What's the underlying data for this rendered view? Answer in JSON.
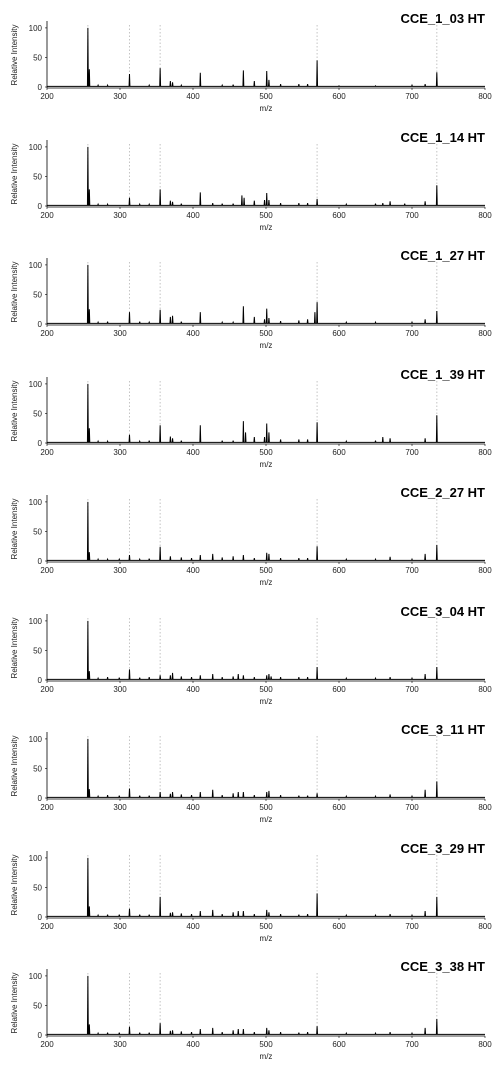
{
  "chart_data": {
    "type": "line",
    "xlabel": "m/z",
    "ylabel": "Relative Intensity",
    "xlim": [
      200,
      800
    ],
    "ylim": [
      0,
      110
    ],
    "x_ticks": [
      200,
      300,
      400,
      500,
      600,
      700,
      800
    ],
    "y_ticks": [
      0,
      50,
      100
    ],
    "reference_lines": [
      256,
      313,
      355,
      570,
      734
    ],
    "panels": [
      {
        "title": "CCE_1_03 HT",
        "peaks": [
          [
            256,
            100
          ],
          [
            258,
            30
          ],
          [
            270,
            3
          ],
          [
            283,
            3
          ],
          [
            313,
            22
          ],
          [
            340,
            3
          ],
          [
            355,
            32
          ],
          [
            369,
            10
          ],
          [
            372,
            8
          ],
          [
            384,
            3
          ],
          [
            410,
            24
          ],
          [
            440,
            3
          ],
          [
            455,
            4
          ],
          [
            469,
            28
          ],
          [
            484,
            10
          ],
          [
            501,
            27
          ],
          [
            504,
            12
          ],
          [
            520,
            5
          ],
          [
            545,
            5
          ],
          [
            557,
            5
          ],
          [
            570,
            45
          ],
          [
            600,
            2
          ],
          [
            650,
            2
          ],
          [
            700,
            3
          ],
          [
            718,
            5
          ],
          [
            734,
            25
          ]
        ]
      },
      {
        "title": "CCE_1_14 HT",
        "peaks": [
          [
            256,
            100
          ],
          [
            258,
            28
          ],
          [
            270,
            3
          ],
          [
            283,
            3
          ],
          [
            313,
            14
          ],
          [
            327,
            3
          ],
          [
            340,
            3
          ],
          [
            355,
            28
          ],
          [
            369,
            9
          ],
          [
            372,
            7
          ],
          [
            384,
            4
          ],
          [
            410,
            23
          ],
          [
            427,
            5
          ],
          [
            440,
            4
          ],
          [
            455,
            4
          ],
          [
            467,
            18
          ],
          [
            470,
            14
          ],
          [
            484,
            9
          ],
          [
            498,
            10
          ],
          [
            501,
            22
          ],
          [
            504,
            10
          ],
          [
            520,
            5
          ],
          [
            545,
            5
          ],
          [
            557,
            5
          ],
          [
            570,
            12
          ],
          [
            610,
            3
          ],
          [
            650,
            4
          ],
          [
            660,
            5
          ],
          [
            670,
            8
          ],
          [
            690,
            4
          ],
          [
            718,
            8
          ],
          [
            734,
            35
          ]
        ]
      },
      {
        "title": "CCE_1_27 HT",
        "peaks": [
          [
            256,
            100
          ],
          [
            258,
            25
          ],
          [
            270,
            3
          ],
          [
            283,
            4
          ],
          [
            313,
            20
          ],
          [
            327,
            4
          ],
          [
            340,
            3
          ],
          [
            355,
            24
          ],
          [
            369,
            12
          ],
          [
            372,
            14
          ],
          [
            384,
            4
          ],
          [
            410,
            20
          ],
          [
            440,
            3
          ],
          [
            455,
            3
          ],
          [
            469,
            30
          ],
          [
            484,
            12
          ],
          [
            498,
            8
          ],
          [
            501,
            26
          ],
          [
            504,
            10
          ],
          [
            520,
            5
          ],
          [
            545,
            6
          ],
          [
            557,
            8
          ],
          [
            567,
            20
          ],
          [
            570,
            37
          ],
          [
            610,
            3
          ],
          [
            650,
            3
          ],
          [
            700,
            3
          ],
          [
            718,
            8
          ],
          [
            734,
            22
          ]
        ]
      },
      {
        "title": "CCE_1_39 HT",
        "peaks": [
          [
            256,
            100
          ],
          [
            258,
            25
          ],
          [
            270,
            3
          ],
          [
            283,
            3
          ],
          [
            313,
            14
          ],
          [
            327,
            3
          ],
          [
            340,
            4
          ],
          [
            355,
            30
          ],
          [
            369,
            11
          ],
          [
            372,
            8
          ],
          [
            384,
            4
          ],
          [
            410,
            30
          ],
          [
            440,
            4
          ],
          [
            455,
            4
          ],
          [
            469,
            37
          ],
          [
            472,
            18
          ],
          [
            484,
            10
          ],
          [
            498,
            10
          ],
          [
            501,
            33
          ],
          [
            504,
            18
          ],
          [
            520,
            6
          ],
          [
            545,
            6
          ],
          [
            557,
            6
          ],
          [
            570,
            35
          ],
          [
            610,
            3
          ],
          [
            650,
            4
          ],
          [
            660,
            10
          ],
          [
            670,
            8
          ],
          [
            718,
            8
          ],
          [
            734,
            47
          ]
        ]
      },
      {
        "title": "CCE_2_27 HT",
        "peaks": [
          [
            256,
            100
          ],
          [
            258,
            15
          ],
          [
            270,
            3
          ],
          [
            283,
            3
          ],
          [
            299,
            3
          ],
          [
            313,
            10
          ],
          [
            327,
            3
          ],
          [
            340,
            4
          ],
          [
            355,
            24
          ],
          [
            369,
            8
          ],
          [
            384,
            6
          ],
          [
            398,
            5
          ],
          [
            410,
            10
          ],
          [
            427,
            12
          ],
          [
            440,
            6
          ],
          [
            455,
            8
          ],
          [
            469,
            10
          ],
          [
            484,
            5
          ],
          [
            501,
            14
          ],
          [
            504,
            12
          ],
          [
            520,
            5
          ],
          [
            545,
            5
          ],
          [
            557,
            5
          ],
          [
            570,
            25
          ],
          [
            610,
            3
          ],
          [
            650,
            3
          ],
          [
            670,
            7
          ],
          [
            700,
            3
          ],
          [
            718,
            12
          ],
          [
            734,
            27
          ]
        ]
      },
      {
        "title": "CCE_3_04 HT",
        "peaks": [
          [
            256,
            100
          ],
          [
            258,
            15
          ],
          [
            270,
            3
          ],
          [
            283,
            5
          ],
          [
            299,
            4
          ],
          [
            313,
            18
          ],
          [
            327,
            4
          ],
          [
            340,
            5
          ],
          [
            355,
            8
          ],
          [
            369,
            8
          ],
          [
            372,
            12
          ],
          [
            384,
            6
          ],
          [
            398,
            5
          ],
          [
            410,
            8
          ],
          [
            427,
            10
          ],
          [
            440,
            5
          ],
          [
            455,
            6
          ],
          [
            462,
            10
          ],
          [
            469,
            8
          ],
          [
            484,
            5
          ],
          [
            501,
            8
          ],
          [
            504,
            10
          ],
          [
            507,
            6
          ],
          [
            520,
            5
          ],
          [
            545,
            5
          ],
          [
            557,
            5
          ],
          [
            570,
            22
          ],
          [
            610,
            3
          ],
          [
            650,
            3
          ],
          [
            670,
            5
          ],
          [
            700,
            3
          ],
          [
            718,
            10
          ],
          [
            734,
            22
          ]
        ]
      },
      {
        "title": "CCE_3_11 HT",
        "peaks": [
          [
            256,
            100
          ],
          [
            258,
            15
          ],
          [
            270,
            3
          ],
          [
            283,
            5
          ],
          [
            299,
            4
          ],
          [
            313,
            16
          ],
          [
            327,
            4
          ],
          [
            340,
            4
          ],
          [
            355,
            10
          ],
          [
            369,
            7
          ],
          [
            372,
            10
          ],
          [
            384,
            6
          ],
          [
            398,
            5
          ],
          [
            410,
            10
          ],
          [
            427,
            14
          ],
          [
            440,
            5
          ],
          [
            455,
            8
          ],
          [
            462,
            10
          ],
          [
            469,
            10
          ],
          [
            484,
            5
          ],
          [
            501,
            10
          ],
          [
            504,
            12
          ],
          [
            520,
            5
          ],
          [
            545,
            4
          ],
          [
            557,
            4
          ],
          [
            570,
            8
          ],
          [
            610,
            3
          ],
          [
            650,
            3
          ],
          [
            670,
            6
          ],
          [
            700,
            3
          ],
          [
            718,
            14
          ],
          [
            734,
            28
          ]
        ]
      },
      {
        "title": "CCE_3_29 HT",
        "peaks": [
          [
            256,
            100
          ],
          [
            258,
            18
          ],
          [
            270,
            3
          ],
          [
            283,
            4
          ],
          [
            299,
            4
          ],
          [
            313,
            14
          ],
          [
            327,
            4
          ],
          [
            340,
            4
          ],
          [
            355,
            34
          ],
          [
            369,
            7
          ],
          [
            372,
            8
          ],
          [
            384,
            6
          ],
          [
            398,
            5
          ],
          [
            410,
            10
          ],
          [
            427,
            12
          ],
          [
            440,
            5
          ],
          [
            455,
            8
          ],
          [
            462,
            10
          ],
          [
            469,
            10
          ],
          [
            484,
            5
          ],
          [
            501,
            12
          ],
          [
            504,
            8
          ],
          [
            520,
            5
          ],
          [
            545,
            4
          ],
          [
            557,
            5
          ],
          [
            570,
            40
          ],
          [
            610,
            3
          ],
          [
            650,
            3
          ],
          [
            670,
            5
          ],
          [
            700,
            3
          ],
          [
            718,
            10
          ],
          [
            734,
            34
          ]
        ]
      },
      {
        "title": "CCE_3_38 HT",
        "peaks": [
          [
            256,
            100
          ],
          [
            258,
            18
          ],
          [
            270,
            3
          ],
          [
            283,
            4
          ],
          [
            299,
            4
          ],
          [
            313,
            14
          ],
          [
            327,
            4
          ],
          [
            340,
            4
          ],
          [
            355,
            20
          ],
          [
            369,
            7
          ],
          [
            372,
            8
          ],
          [
            384,
            6
          ],
          [
            398,
            5
          ],
          [
            410,
            10
          ],
          [
            427,
            12
          ],
          [
            440,
            5
          ],
          [
            455,
            8
          ],
          [
            462,
            10
          ],
          [
            469,
            10
          ],
          [
            484,
            5
          ],
          [
            501,
            12
          ],
          [
            504,
            8
          ],
          [
            520,
            5
          ],
          [
            545,
            4
          ],
          [
            557,
            5
          ],
          [
            570,
            15
          ],
          [
            610,
            3
          ],
          [
            650,
            3
          ],
          [
            670,
            5
          ],
          [
            700,
            3
          ],
          [
            718,
            12
          ],
          [
            734,
            27
          ]
        ]
      }
    ]
  }
}
